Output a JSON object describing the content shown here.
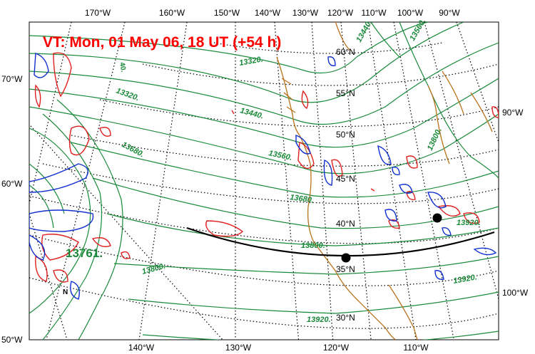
{
  "map": {
    "title": "VT:  Mon, 01 May 06, 18 UT (+54 h)",
    "title_color": "#ff0000",
    "contour_color": "#1a8a3a",
    "coast_color": "#b8731c",
    "positive_color": "#e02020",
    "negative_color": "#1030d0",
    "max_label": "13761.",
    "top_lon_labels": [
      "170°W",
      "160°W",
      "150°W",
      "140°W",
      "130°W",
      "120°W",
      "110°W",
      "100°W",
      "90°W"
    ],
    "bottom_lon_labels": [
      "140°W",
      "130°W",
      "120°W",
      "110°W"
    ],
    "left_lat_labels": [
      "70°W",
      "60°W",
      "50°W"
    ],
    "right_labels": [
      "90°W",
      "100°W"
    ],
    "lat_labels": [
      "60°N",
      "55°N",
      "50°N",
      "45°N",
      "40°N",
      "35°N",
      "30°N"
    ],
    "contour_labels": [
      "13320.",
      "13440.",
      "13560.",
      "13680.",
      "13800.",
      "13920.",
      "13320.",
      "13440.",
      "13560.",
      "13680.",
      "13800.",
      "13800.",
      "13800.",
      "13920.",
      "13440.",
      "13560.",
      "13680.",
      "13920.",
      "13800."
    ]
  }
}
